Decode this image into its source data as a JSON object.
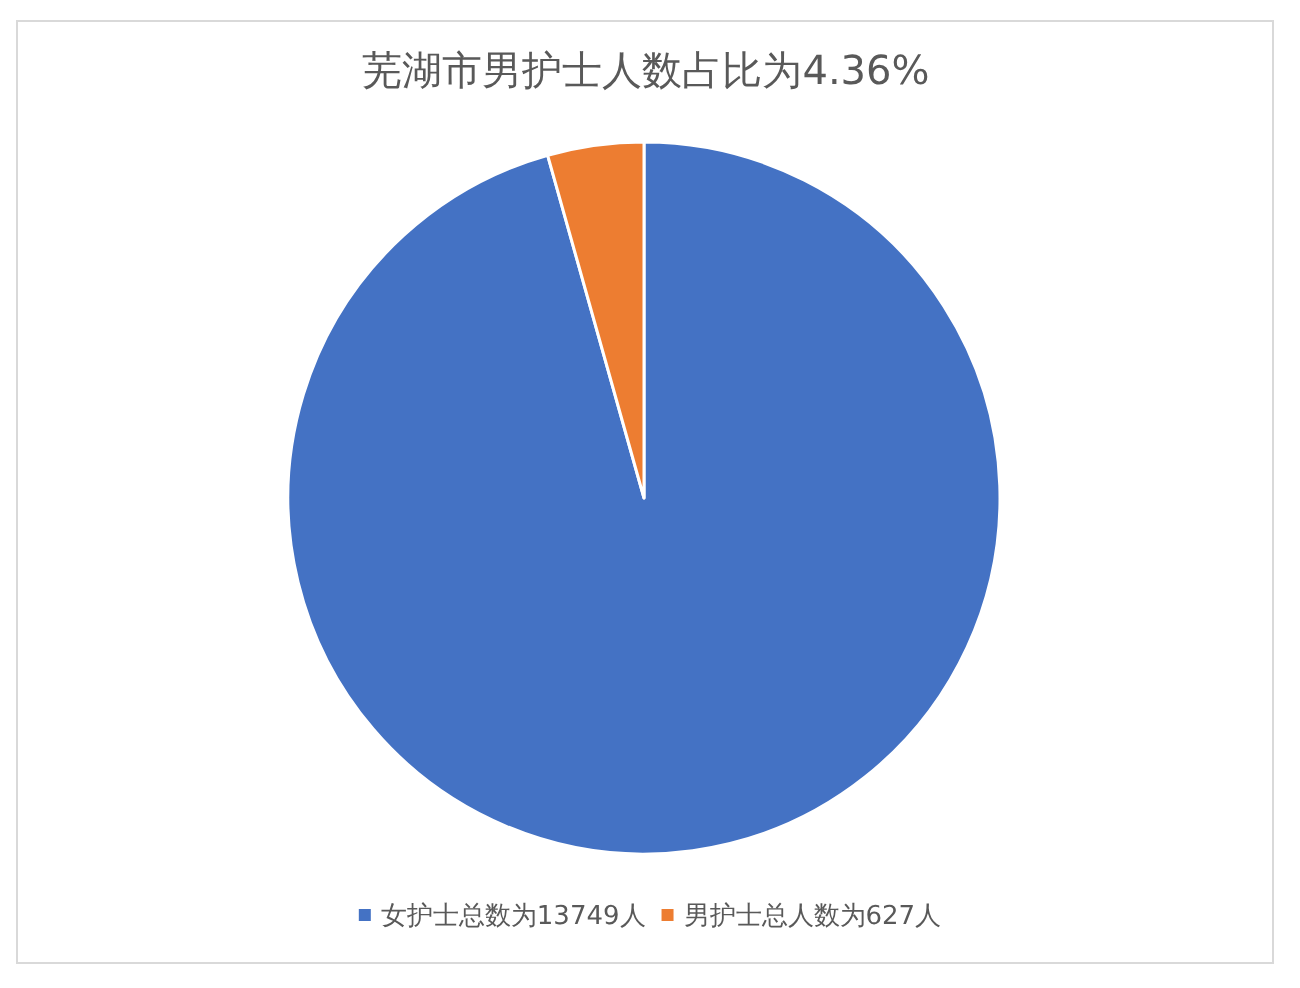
{
  "chart_data": {
    "type": "pie",
    "title": "芜湖市男护士人数占比为4.36%",
    "categories": [
      "女护士总数为13749人",
      "男护士总人数为627人"
    ],
    "values": [
      13749,
      627
    ],
    "colors": [
      "#4472c4",
      "#ed7d31"
    ],
    "legend": "bottom"
  }
}
